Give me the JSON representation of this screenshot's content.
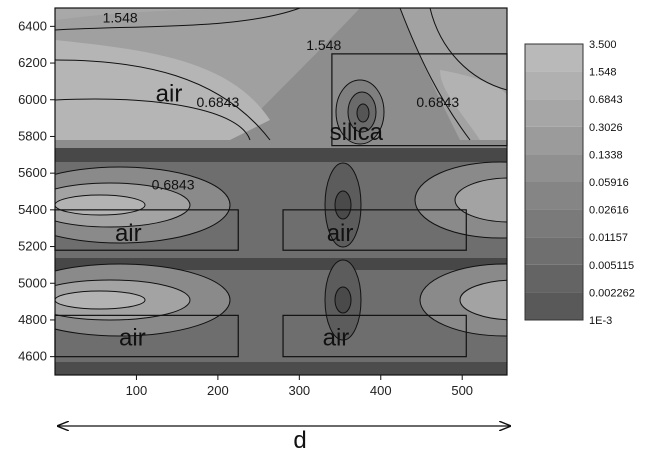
{
  "chart_data": {
    "type": "heatmap",
    "subtype": "contour",
    "title": "",
    "xlabel": "d",
    "ylabel": "",
    "xlim": [
      0,
      555
    ],
    "ylim": [
      4500,
      6500
    ],
    "x_ticks": [
      "100",
      "200",
      "300",
      "400",
      "500"
    ],
    "y_ticks": [
      "4600",
      "4800",
      "5000",
      "5200",
      "5400",
      "5600",
      "5800",
      "6000",
      "6200",
      "6400"
    ],
    "grid": false,
    "colorbar_levels": [
      "3.500",
      "1.548",
      "0.6843",
      "0.3026",
      "0.1338",
      "0.05916",
      "0.02616",
      "0.01157",
      "0.005115",
      "0.002262",
      "1E-3"
    ],
    "colorbar_colors": [
      "#b9b9b9",
      "#b0b0b0",
      "#a6a6a6",
      "#9b9b9b",
      "#909090",
      "#858585",
      "#7a7a7a",
      "#6f6f6f",
      "#646464",
      "#595959",
      "#4e4e4e"
    ],
    "contour_labels": [
      {
        "text": "1.548",
        "x": 80,
        "y": 6420
      },
      {
        "text": "1.548",
        "x": 330,
        "y": 6270
      },
      {
        "text": "0.6843",
        "x": 200,
        "y": 5960
      },
      {
        "text": "0.6843",
        "x": 470,
        "y": 5960
      },
      {
        "text": "0.6843",
        "x": 145,
        "y": 5510
      }
    ],
    "regions": [
      {
        "label": "air",
        "x": 140,
        "y": 5990
      },
      {
        "label": "silica",
        "x": 370,
        "y": 5780
      },
      {
        "label": "air",
        "x": 90,
        "y": 5230
      },
      {
        "label": "air",
        "x": 350,
        "y": 5230
      },
      {
        "label": "air",
        "x": 95,
        "y": 4660
      },
      {
        "label": "air",
        "x": 345,
        "y": 4660
      }
    ],
    "structure_boxes": [
      {
        "x0": 340,
        "x1": 555,
        "y0": 5750,
        "y1": 6250
      },
      {
        "x0": 0,
        "x1": 225,
        "y0": 5180,
        "y1": 5400
      },
      {
        "x0": 280,
        "x1": 505,
        "y0": 5180,
        "y1": 5400
      },
      {
        "x0": 0,
        "x1": 225,
        "y0": 4600,
        "y1": 4825
      },
      {
        "x0": 280,
        "x1": 505,
        "y0": 4600,
        "y1": 4825
      }
    ]
  }
}
